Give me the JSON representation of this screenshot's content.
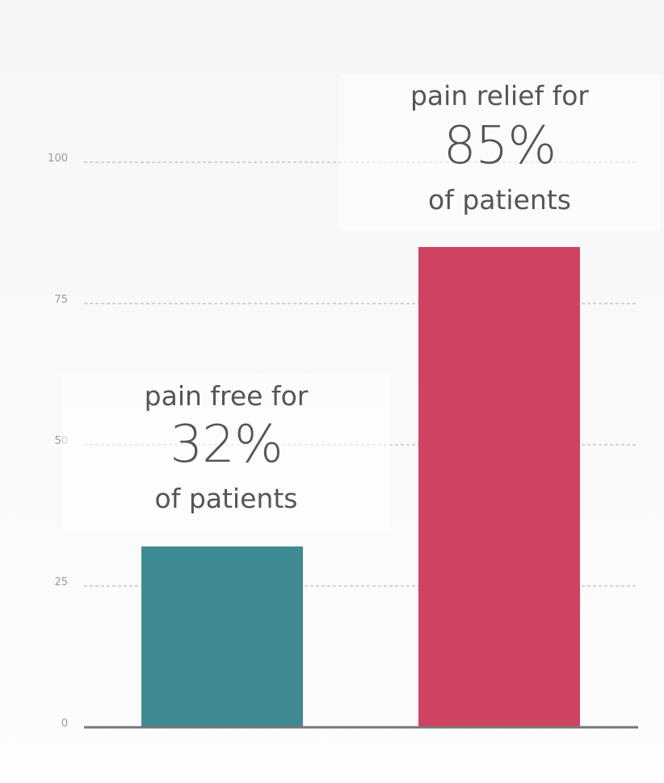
{
  "chart_data": {
    "type": "bar",
    "categories": [
      "",
      ""
    ],
    "values": [
      32,
      85
    ],
    "colors": [
      "#3f8b93",
      "#cf4361"
    ],
    "yticks": [
      0,
      25,
      50,
      75,
      100
    ],
    "ylim": [
      0,
      100
    ],
    "grid": true,
    "annotations": [
      {
        "top": "pain free for",
        "value": "32%",
        "bottom": "of patients"
      },
      {
        "top": "pain relief for",
        "value": "85%",
        "bottom": "of patients"
      }
    ]
  }
}
